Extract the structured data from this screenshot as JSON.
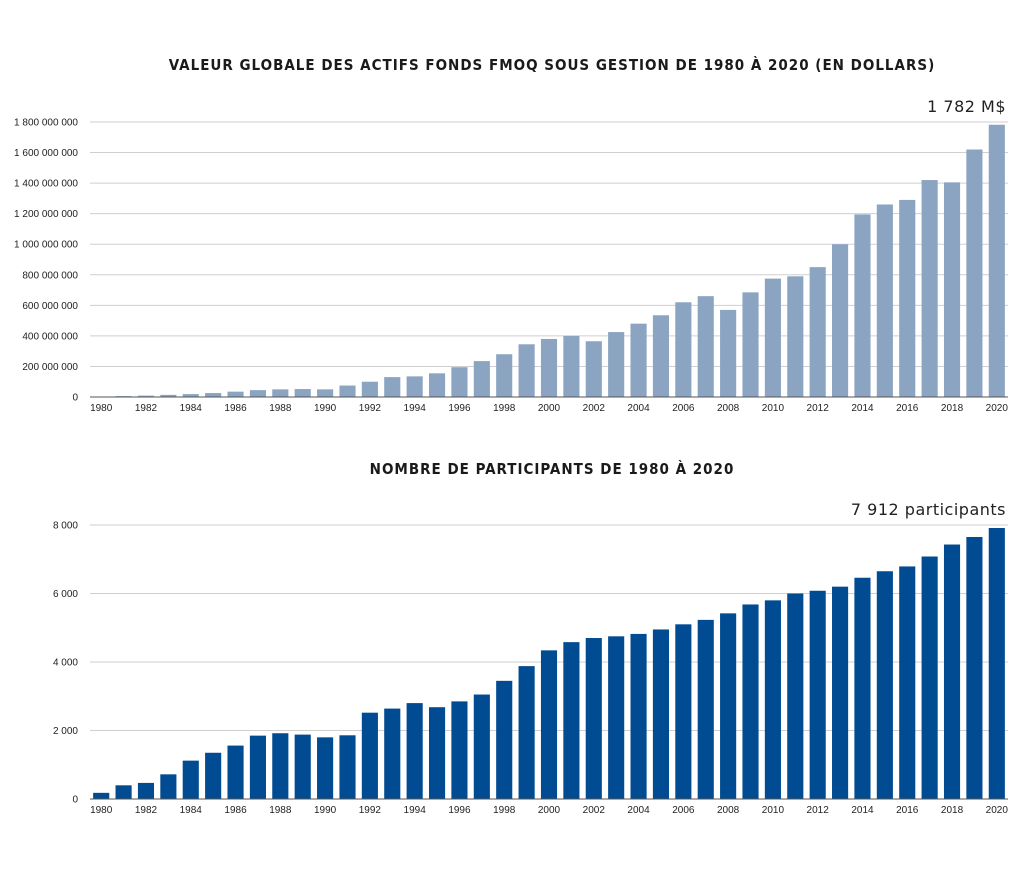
{
  "chart_data": [
    {
      "type": "bar",
      "title": "VALEUR GLOBALE DES ACTIFS FONDS FMOQ SOUS GESTION DE 1980 À 2020 (EN DOLLARS)",
      "annotation": "1 782 M$",
      "color": "#8aa4c2",
      "ylim": [
        0,
        1800000000
      ],
      "yticks": [
        0,
        200000000,
        400000000,
        600000000,
        800000000,
        1000000000,
        1200000000,
        1400000000,
        1600000000,
        1800000000
      ],
      "ytick_labels": [
        "0",
        "200 000 000",
        "400 000 000",
        "600 000 000",
        "800 000 000",
        "1 000 000 000",
        "1 200 000 000",
        "1 400 000 000",
        "1 600 000 000",
        "1 800 000 000"
      ],
      "xtick_labels": [
        "1980",
        "1982",
        "1984",
        "1986",
        "1988",
        "1990",
        "1992",
        "1994",
        "1996",
        "1998",
        "2000",
        "2002",
        "2004",
        "2006",
        "2008",
        "2010",
        "2012",
        "2014",
        "2016",
        "2018",
        "2020"
      ],
      "categories": [
        "1980",
        "1981",
        "1982",
        "1983",
        "1984",
        "1985",
        "1986",
        "1987",
        "1988",
        "1989",
        "1990",
        "1991",
        "1992",
        "1993",
        "1994",
        "1995",
        "1996",
        "1997",
        "1998",
        "1999",
        "2000",
        "2001",
        "2002",
        "2003",
        "2004",
        "2005",
        "2006",
        "2007",
        "2008",
        "2009",
        "2010",
        "2011",
        "2012",
        "2013",
        "2014",
        "2015",
        "2016",
        "2017",
        "2018",
        "2019",
        "2020"
      ],
      "values": [
        3000000,
        6000000,
        9000000,
        14000000,
        19000000,
        26000000,
        35000000,
        45000000,
        50000000,
        52000000,
        50000000,
        75000000,
        100000000,
        130000000,
        135000000,
        155000000,
        195000000,
        235000000,
        280000000,
        345000000,
        380000000,
        400000000,
        365000000,
        425000000,
        480000000,
        535000000,
        620000000,
        660000000,
        570000000,
        685000000,
        775000000,
        790000000,
        850000000,
        1000000000,
        1195000000,
        1260000000,
        1290000000,
        1420000000,
        1405000000,
        1620000000,
        1782000000
      ]
    },
    {
      "type": "bar",
      "title": "NOMBRE DE PARTICIPANTS DE 1980 À 2020",
      "annotation": "7 912 participants",
      "color": "#004b92",
      "ylim": [
        0,
        8000
      ],
      "yticks": [
        0,
        2000,
        4000,
        6000,
        8000
      ],
      "ytick_labels": [
        "0",
        "2 000",
        "4 000",
        "6 000",
        "8 000"
      ],
      "xtick_labels": [
        "1980",
        "1982",
        "1984",
        "1986",
        "1988",
        "1990",
        "1992",
        "1994",
        "1996",
        "1998",
        "2000",
        "2002",
        "2004",
        "2006",
        "2008",
        "2010",
        "2012",
        "2014",
        "2016",
        "2018",
        "2020"
      ],
      "categories": [
        "1980",
        "1981",
        "1982",
        "1983",
        "1984",
        "1985",
        "1986",
        "1987",
        "1988",
        "1989",
        "1990",
        "1991",
        "1992",
        "1993",
        "1994",
        "1995",
        "1996",
        "1997",
        "1998",
        "1999",
        "2000",
        "2001",
        "2002",
        "2003",
        "2004",
        "2005",
        "2006",
        "2007",
        "2008",
        "2009",
        "2010",
        "2011",
        "2012",
        "2013",
        "2014",
        "2015",
        "2016",
        "2017",
        "2018",
        "2019",
        "2020"
      ],
      "values": [
        180,
        400,
        470,
        720,
        1120,
        1350,
        1560,
        1850,
        1920,
        1880,
        1800,
        1860,
        2520,
        2640,
        2800,
        2680,
        2850,
        3050,
        3450,
        3880,
        4340,
        4580,
        4700,
        4750,
        4820,
        4950,
        5100,
        5230,
        5420,
        5680,
        5800,
        6000,
        6080,
        6200,
        6460,
        6650,
        6790,
        7080,
        7430,
        7650,
        7912
      ]
    }
  ]
}
